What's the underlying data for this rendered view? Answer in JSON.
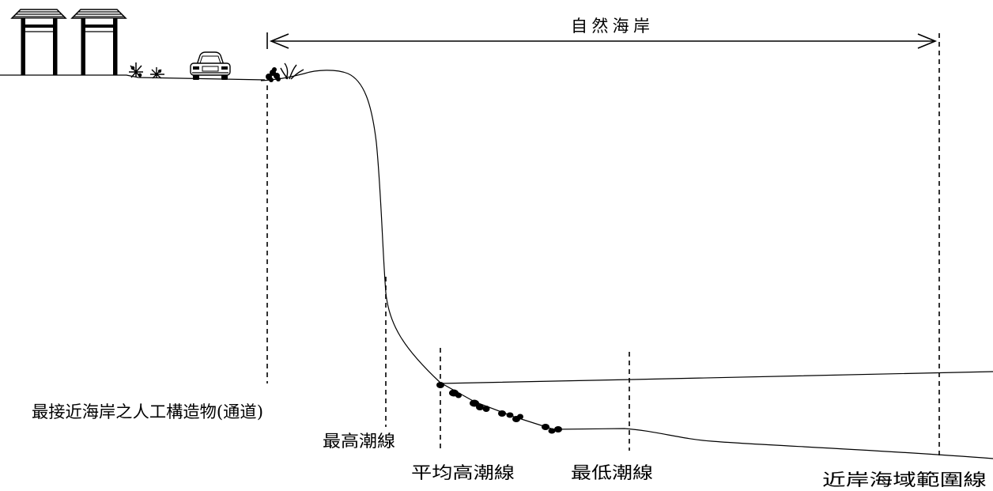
{
  "diagram": {
    "span_label": "自然海岸",
    "labels": {
      "nearest_artificial_structure": "最接近海岸之人工構造物(通道)",
      "highest_tide_line": "最高潮線",
      "mean_high_tide_line": "平均高潮線",
      "lowest_tide_line": "最低潮線",
      "nearshore_boundary_line": "近岸海域範圍線"
    }
  },
  "illustrations": {
    "buildings": "kiosk-icon",
    "vegetation": "shrub-icon",
    "vehicle": "car-icon",
    "rocks": "rock-icon"
  },
  "colors": {
    "line": "#000000",
    "background": "#ffffff"
  }
}
